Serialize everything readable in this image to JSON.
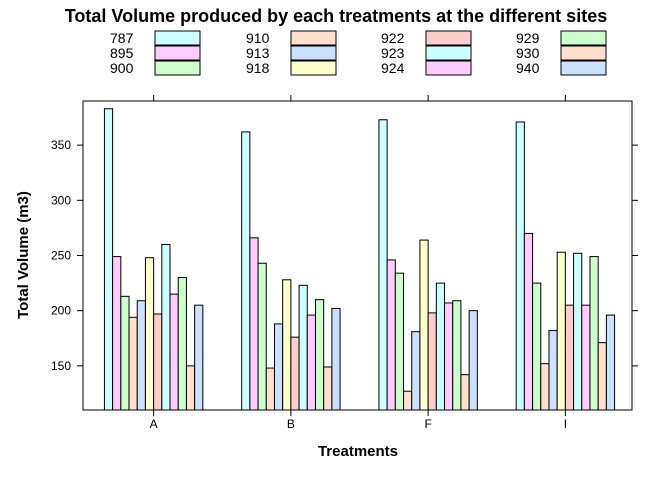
{
  "chart_data": {
    "type": "bar",
    "title": "Total Volume produced by each treatments at the different sites",
    "xlabel": "Treatments",
    "ylabel": "Total Volume (m3)",
    "categories": [
      "A",
      "B",
      "F",
      "I"
    ],
    "ylim": [
      110,
      390
    ],
    "yticks": [
      150,
      200,
      250,
      300,
      350
    ],
    "grid": false,
    "legend_position": "top",
    "series": [
      {
        "name": "787",
        "color": "#ccffff",
        "values": [
          383,
          362,
          373,
          371
        ]
      },
      {
        "name": "895",
        "color": "#ffccff",
        "values": [
          249,
          266,
          246,
          270
        ]
      },
      {
        "name": "900",
        "color": "#ccffcc",
        "values": [
          213,
          243,
          234,
          225
        ]
      },
      {
        "name": "910",
        "color": "#ffe0cc",
        "values": [
          194,
          148,
          127,
          152
        ]
      },
      {
        "name": "913",
        "color": "#cce0ff",
        "values": [
          209,
          188,
          181,
          182
        ]
      },
      {
        "name": "918",
        "color": "#ffffcc",
        "values": [
          248,
          228,
          264,
          253
        ]
      },
      {
        "name": "922",
        "color": "#ffcccc",
        "values": [
          197,
          176,
          198,
          205
        ]
      },
      {
        "name": "923",
        "color": "#ccffff",
        "values": [
          260,
          223,
          225,
          252
        ]
      },
      {
        "name": "924",
        "color": "#ffccff",
        "values": [
          215,
          196,
          207,
          205
        ]
      },
      {
        "name": "929",
        "color": "#ccffcc",
        "values": [
          230,
          210,
          209,
          249
        ]
      },
      {
        "name": "930",
        "color": "#ffe0cc",
        "values": [
          150,
          149,
          142,
          171
        ]
      },
      {
        "name": "940",
        "color": "#cce0ff",
        "values": [
          205,
          202,
          200,
          196
        ]
      }
    ]
  }
}
